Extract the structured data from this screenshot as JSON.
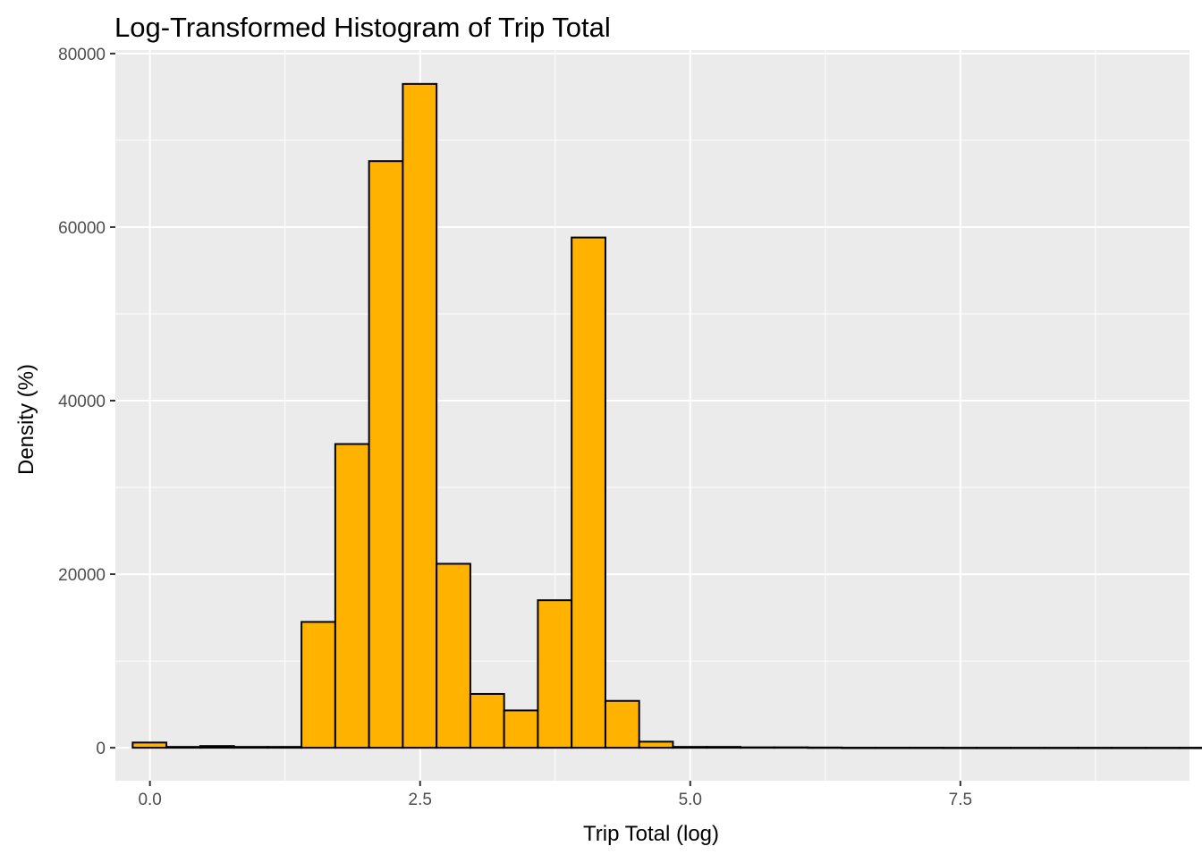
{
  "chart_data": {
    "type": "histogram",
    "title": "Log-Transformed Histogram of Trip Total",
    "xlabel": "Trip Total (log)",
    "ylabel": "Density (%)",
    "xlim": [
      -0.32,
      9.62
    ],
    "ylim": [
      -3800,
      80400
    ],
    "x_ticks": [
      0.0,
      2.5,
      5.0,
      7.5
    ],
    "x_tick_labels": [
      "0.0",
      "2.5",
      "5.0",
      "7.5"
    ],
    "y_ticks": [
      0,
      20000,
      40000,
      60000,
      80000
    ],
    "y_tick_labels": [
      "0",
      "20000",
      "40000",
      "60000",
      "80000"
    ],
    "bin_start": -0.16,
    "bin_width": 0.3125,
    "counts": [
      600,
      100,
      200,
      100,
      100,
      14500,
      35000,
      67600,
      76500,
      21200,
      6200,
      4300,
      17000,
      58800,
      5400,
      700,
      100,
      100,
      50,
      50,
      30,
      10,
      10,
      10,
      5,
      5,
      5,
      5,
      5,
      5,
      5,
      5
    ],
    "fill_color": "#FFB300",
    "outline_color": "#000000",
    "panel_color": "#EBEBEB",
    "grid_color": "#FFFFFF",
    "grid": true,
    "legend": "none"
  }
}
